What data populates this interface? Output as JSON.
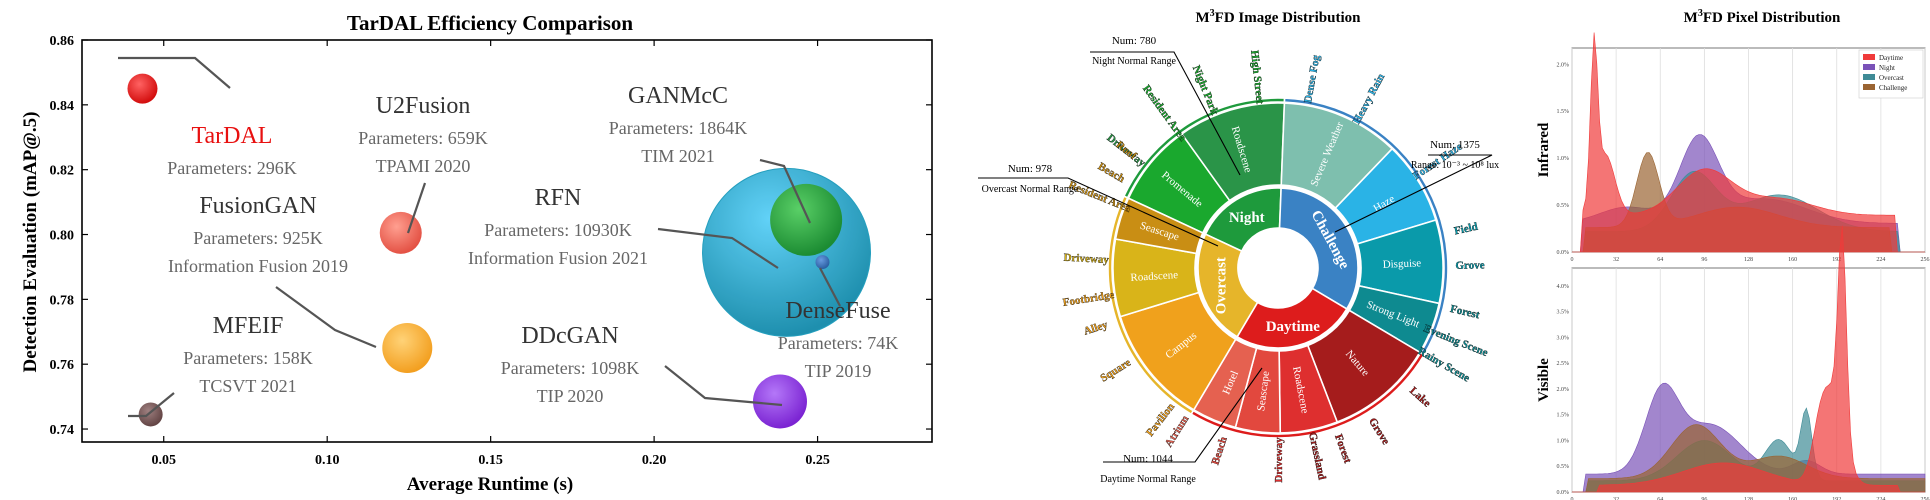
{
  "panel1": {
    "title": "TarDAL Efficiency Comparison",
    "xlabel": "Average Runtime (s)",
    "ylabel": "Detection Evaluation (mAP@.5)"
  },
  "panel2": {
    "title_prefix": "M",
    "title_sup": "3",
    "title_suffix": "FD Image Distribution"
  },
  "panel3": {
    "title_prefix": "M",
    "title_sup": "3",
    "title_suffix": "FD Pixel Distribution"
  },
  "chart_data": [
    {
      "type": "scatter",
      "title": "TarDAL Efficiency Comparison",
      "xlabel": "Average Runtime (s)",
      "ylabel": "Detection Evaluation (mAP@.5)",
      "xlim": [
        0.025,
        0.285
      ],
      "ylim": [
        0.736,
        0.86
      ],
      "xticks": [
        "0.05",
        "0.10",
        "0.15",
        "0.20",
        "0.25"
      ],
      "yticks": [
        "0.74",
        "0.76",
        "0.78",
        "0.80",
        "0.82",
        "0.84",
        "0.86"
      ],
      "points": [
        {
          "name": "TarDAL",
          "params": "Parameters: 296K",
          "venue": "",
          "x": 0.0435,
          "y": 0.845,
          "size_k": 296,
          "color": "#ee1111"
        },
        {
          "name": "U2Fusion",
          "params": "Parameters: 659K",
          "venue": "TPAMI 2020",
          "x": 0.1225,
          "y": 0.8005,
          "size_k": 659,
          "color": "#f05a4a"
        },
        {
          "name": "FusionGAN",
          "params": "Parameters: 925K",
          "venue": "Information Fusion 2019",
          "x": 0.1245,
          "y": 0.765,
          "size_k": 925,
          "color": "#f5a623"
        },
        {
          "name": "MFEIF",
          "params": "Parameters: 158K",
          "venue": "TCSVT 2021",
          "x": 0.046,
          "y": 0.7445,
          "size_k": 158,
          "color": "#6b4a4a"
        },
        {
          "name": "GANMcC",
          "params": "Parameters: 1864K",
          "venue": "TIM 2021",
          "x": 0.2465,
          "y": 0.8045,
          "size_k": 1864,
          "color": "#2eaa3a"
        },
        {
          "name": "RFN",
          "params": "Parameters: 10930K",
          "venue": "Information Fusion 2021",
          "x": 0.2405,
          "y": 0.7945,
          "size_k": 10930,
          "color": "#2aaed8"
        },
        {
          "name": "DenseFuse",
          "params": "Parameters: 74K",
          "venue": "TIP 2019",
          "x": 0.2515,
          "y": 0.7915,
          "size_k": 74,
          "color": "#3b6fb5"
        },
        {
          "name": "DDcGAN",
          "params": "Parameters: 1098K",
          "venue": "TIP 2020",
          "x": 0.2385,
          "y": 0.7485,
          "size_k": 1098,
          "color": "#8a2be2"
        }
      ]
    },
    {
      "type": "pie",
      "title": "M3FD Image Distribution",
      "inner": [
        {
          "name": "Night",
          "value": 780,
          "color": "#1e9a3c"
        },
        {
          "name": "Challenge",
          "value": 1375,
          "color": "#3a82c4"
        },
        {
          "name": "Daytime",
          "value": 1044,
          "color": "#dd1c1c"
        },
        {
          "name": "Overcast",
          "value": 978,
          "color": "#e6b52a"
        }
      ],
      "outer": [
        {
          "name": "Promenade",
          "parent": "Night",
          "value": 155,
          "color": "#1aa82e"
        },
        {
          "name": "Roadscene",
          "parent": "Night",
          "value": 200,
          "color": "#2a9448"
        },
        {
          "name": "Severe Weather",
          "parent": "Challenge",
          "value": 340,
          "color": "#7ebfae"
        },
        {
          "name": "Haze",
          "parent": "Challenge",
          "value": 240,
          "color": "#2ab3e6"
        },
        {
          "name": "Disguise",
          "parent": "Challenge",
          "value": 240,
          "color": "#0a9aaa"
        },
        {
          "name": "Strong Light",
          "parent": "Challenge",
          "value": 150,
          "color": "#0e8a90"
        },
        {
          "name": "Nature",
          "parent": "Daytime",
          "value": 340,
          "color": "#a51c1c"
        },
        {
          "name": "Roadscene",
          "parent": "Daytime",
          "value": 180,
          "color": "#de2f2f"
        },
        {
          "name": "Seascape",
          "parent": "Daytime",
          "value": 140,
          "color": "#e2483e"
        },
        {
          "name": "Hotel",
          "parent": "Daytime",
          "value": 140,
          "color": "#e56150"
        },
        {
          "name": "Campus",
          "parent": "Overcast",
          "value": 340,
          "color": "#f0a11c"
        },
        {
          "name": "Roadscene",
          "parent": "Overcast",
          "value": 220,
          "color": "#d9b419"
        },
        {
          "name": "Seascape",
          "parent": "Overcast",
          "value": 120,
          "color": "#c98e14"
        }
      ],
      "outer_labels": [
        {
          "text": "High Street",
          "color": "#1aa82e",
          "angle": -6
        },
        {
          "text": "Night Park",
          "color": "#1aa82e",
          "angle": -22
        },
        {
          "text": "Resident Area",
          "color": "#1aa82e",
          "angle": -36
        },
        {
          "text": "Driveway",
          "color": "#2a9448",
          "angle": -52
        },
        {
          "text": "Dense Fog",
          "color": "#2ab3e6",
          "angle": 10
        },
        {
          "text": "Heavy Rain",
          "color": "#2ab3e6",
          "angle": 28
        },
        {
          "text": "Forest Haze",
          "color": "#2ab3e6",
          "angle": 56
        },
        {
          "text": "Field",
          "color": "#0a9aaa",
          "angle": 78
        },
        {
          "text": "Grove",
          "color": "#0a9aaa",
          "angle": 89
        },
        {
          "text": "Forest",
          "color": "#0e8a90",
          "angle": 103
        },
        {
          "text": "Evening Scene",
          "color": "#0e8a90",
          "angle": 112
        },
        {
          "text": "Rainy Scene",
          "color": "#0e8a90",
          "angle": 120
        },
        {
          "text": "Lake",
          "color": "#a51c1c",
          "angle": 132
        },
        {
          "text": "Grove",
          "color": "#a51c1c",
          "angle": 148
        },
        {
          "text": "Forest",
          "color": "#a51c1c",
          "angle": 160
        },
        {
          "text": "Grassland",
          "color": "#a51c1c",
          "angle": 168
        },
        {
          "text": "Driveway",
          "color": "#de2f2f",
          "angle": 180
        },
        {
          "text": "Beach",
          "color": "#e2483e",
          "angle": 198
        },
        {
          "text": "Atrium",
          "color": "#e56150",
          "angle": 212
        },
        {
          "text": "Pavilion",
          "color": "#f0a11c",
          "angle": 218
        },
        {
          "text": "Square",
          "color": "#f0a11c",
          "angle": 238
        },
        {
          "text": "Alley",
          "color": "#f0a11c",
          "angle": 252
        },
        {
          "text": "Footbridge",
          "color": "#f0a11c",
          "angle": 261
        },
        {
          "text": "Driveway",
          "color": "#d9b419",
          "angle": 273
        },
        {
          "text": "Resident Area",
          "color": "#c98e14",
          "angle": 292
        },
        {
          "text": "Beach",
          "color": "#c98e14",
          "angle": 300
        },
        {
          "text": "Roof",
          "color": "#c98e14",
          "angle": 308
        }
      ],
      "annotations": [
        {
          "num": "Num: 780",
          "sub": "Night Normal Range"
        },
        {
          "num": "Num: 1375",
          "sub": "Range: 10⁻³ ~ 10⁸ lux"
        },
        {
          "num": "Num: 978",
          "sub": "Overcast Normal Range"
        },
        {
          "num": "Num: 1044",
          "sub": "Daytime Normal Range"
        }
      ]
    },
    {
      "type": "area",
      "title": "M3FD Pixel Distribution",
      "subplots": [
        "Infrared",
        "Visible"
      ],
      "xticks": [
        "0",
        "32",
        "64",
        "96",
        "128",
        "160",
        "192",
        "224",
        "256"
      ],
      "xlim": [
        0,
        256
      ],
      "yticks_infrared": [
        "0.0%",
        "0.5%",
        "1.0%",
        "1.5%",
        "2.0%"
      ],
      "yticks_visible": [
        "0.0%",
        "0.5%",
        "1.0%",
        "1.5%",
        "2.0%",
        "2.5%",
        "3.0%",
        "3.5%",
        "4.0%"
      ],
      "legend": [
        "Daytime",
        "Night",
        "Overcast",
        "Challenge"
      ],
      "legend_placement": "top-right",
      "colors": {
        "Daytime": "#f03a3a",
        "Night": "#7a52b8",
        "Overcast": "#3f8b96",
        "Challenge": "#9a6432"
      }
    }
  ]
}
